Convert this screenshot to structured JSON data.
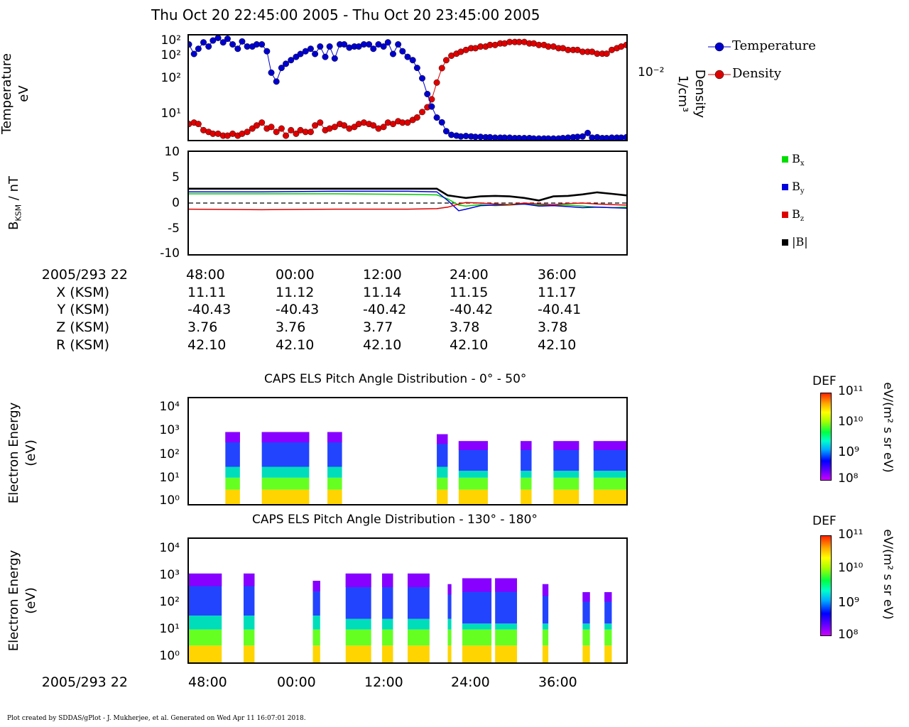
{
  "page": {
    "title": "Thu Oct 20 22:45:00 2005 - Thu Oct 20 23:45:00 2005",
    "footer": "Plot created by SDDAS/gPlot - J. Mukherjee, et al.  Generated on Wed Apr 11 16:07:01 2018."
  },
  "panel1": {
    "ylabel_line1": "Temperature",
    "ylabel_line2": "eV",
    "right_label_line1": "Density",
    "right_label_line2": "1/cm³",
    "right_tick": "10⁻²",
    "left_ticks": [
      "10²",
      "10²",
      "10²",
      "10¹"
    ],
    "legend": [
      {
        "label": "Temperature",
        "color": "#0000cc"
      },
      {
        "label": "Density",
        "color": "#dd0000"
      }
    ]
  },
  "panel2": {
    "ylabel": "B",
    "ylabel_sub": "KSM",
    "ylabel_unit": " / nT",
    "ticks": [
      "10",
      "5",
      "0",
      "-5",
      "-10"
    ],
    "legend": [
      {
        "label": "B",
        "sub": "x",
        "color": "#00dd00"
      },
      {
        "label": "B",
        "sub": "y",
        "color": "#0000dd"
      },
      {
        "label": "B",
        "sub": "z",
        "color": "#dd0000"
      },
      {
        "label": "|B|",
        "sub": "",
        "color": "#000000"
      }
    ]
  },
  "ephemeris": {
    "time_label": "2005/293 22",
    "times": [
      "48:00",
      "00:00",
      "12:00",
      "24:00",
      "36:00"
    ],
    "rows": [
      {
        "label": "X (KSM)",
        "values": [
          "11.11",
          "11.12",
          "11.14",
          "11.15",
          "11.17"
        ]
      },
      {
        "label": "Y (KSM)",
        "values": [
          "-40.43",
          "-40.43",
          "-40.42",
          "-40.42",
          "-40.41"
        ]
      },
      {
        "label": "Z (KSM)",
        "values": [
          "3.76",
          "3.76",
          "3.77",
          "3.78",
          "3.78"
        ]
      },
      {
        "label": "R (KSM)",
        "values": [
          "42.10",
          "42.10",
          "42.10",
          "42.10",
          "42.10"
        ]
      }
    ]
  },
  "panel3": {
    "title": "CAPS ELS Pitch Angle Distribution - 0° - 50°",
    "ylabel_line1": "Electron Energy",
    "ylabel_line2": "(eV)",
    "ticks": [
      "10⁴",
      "10³",
      "10²",
      "10¹",
      "10⁰"
    ],
    "colorbar_title": "DEF",
    "colorbar_ticks": [
      "10¹¹",
      "10¹⁰",
      "10⁹",
      "10⁸"
    ],
    "colorbar_unit": "eV/(m² s sr eV)"
  },
  "panel4": {
    "title": "CAPS ELS Pitch Angle Distribution - 130° - 180°",
    "ylabel_line1": "Electron Energy",
    "ylabel_line2": "(eV)",
    "ticks": [
      "10⁴",
      "10³",
      "10²",
      "10¹",
      "10⁰"
    ],
    "colorbar_title": "DEF",
    "colorbar_ticks": [
      "10¹¹",
      "10¹⁰",
      "10⁹",
      "10⁸"
    ],
    "colorbar_unit": "eV/(m² s sr eV)"
  },
  "bottom_axis": {
    "time_label": "2005/293 22",
    "ticks": [
      "48:00",
      "00:00",
      "12:00",
      "24:00",
      "36:00"
    ]
  },
  "chart_data": [
    {
      "type": "line",
      "title": "",
      "x_unit": "minutes after 22:45",
      "xlim": [
        0,
        60
      ],
      "ylabel": "Temperature eV",
      "y2label": "Density 1/cm³",
      "series": [
        {
          "name": "Temperature",
          "color": "#0000cc",
          "x": [
            0,
            0.7,
            1.3,
            2,
            2.7,
            3.3,
            4,
            4.7,
            5.3,
            6,
            6.7,
            7.3,
            8,
            8.7,
            9.3,
            10,
            10.7,
            11.3,
            12,
            12.7,
            13.3,
            14,
            14.7,
            15.3,
            16,
            16.7,
            17.3,
            18,
            18.7,
            19.3,
            20,
            20.7,
            21.3,
            22,
            22.7,
            23.3,
            24,
            24.7,
            25.3,
            26,
            26.7,
            27.3,
            28,
            28.7,
            29.3,
            30,
            30.7,
            31.3,
            32,
            32.7,
            33.3,
            34,
            34.7,
            35.3,
            36,
            36.7,
            37.3,
            38,
            38.7,
            39.3,
            40,
            40.7,
            41.3,
            42,
            42.7,
            43.3,
            44,
            44.7,
            45.3,
            46,
            46.7,
            47.3,
            48,
            48.7,
            49.3,
            50,
            50.7,
            51.3,
            52,
            52.7,
            53.3,
            54,
            54.7,
            55.3,
            56,
            56.7,
            57.3,
            58,
            58.7,
            59.3,
            60
          ],
          "y": [
            150,
            110,
            130,
            160,
            140,
            170,
            185,
            160,
            180,
            150,
            130,
            165,
            140,
            140,
            150,
            150,
            120,
            60,
            45,
            70,
            80,
            90,
            100,
            110,
            120,
            130,
            110,
            140,
            100,
            140,
            95,
            150,
            150,
            135,
            140,
            140,
            150,
            150,
            130,
            150,
            140,
            160,
            110,
            150,
            120,
            100,
            90,
            70,
            50,
            30,
            20,
            14,
            12,
            9,
            8,
            7.8,
            7.6,
            7.7,
            7.6,
            7.5,
            7.5,
            7.4,
            7.4,
            7.3,
            7.3,
            7.3,
            7.3,
            7.2,
            7.2,
            7.2,
            7.2,
            7.1,
            7.1,
            7.1,
            7.1,
            7.1,
            7.1,
            7.2,
            7.3,
            7.4,
            7.5,
            7.6,
            8.5,
            7.3,
            7.4,
            7.2,
            7.2,
            7.3,
            7.3,
            7.3,
            7.4
          ]
        },
        {
          "name": "Density",
          "color": "#dd0000",
          "x": [
            0,
            0.7,
            1.3,
            2,
            2.7,
            3.3,
            4,
            4.7,
            5.3,
            6,
            6.7,
            7.3,
            8,
            8.7,
            9.3,
            10,
            10.7,
            11.3,
            12,
            12.7,
            13.3,
            14,
            14.7,
            15.3,
            16,
            16.7,
            17.3,
            18,
            18.7,
            19.3,
            20,
            20.7,
            21.3,
            22,
            22.7,
            23.3,
            24,
            24.7,
            25.3,
            26,
            26.7,
            27.3,
            28,
            28.7,
            29.3,
            30,
            30.7,
            31.3,
            32,
            32.7,
            33.3,
            34,
            34.7,
            35.3,
            36,
            36.7,
            37.3,
            38,
            38.7,
            39.3,
            40,
            40.7,
            41.3,
            42,
            42.7,
            43.3,
            44,
            44.7,
            45.3,
            46,
            46.7,
            47.3,
            48,
            48.7,
            49.3,
            50,
            50.7,
            51.3,
            52,
            52.7,
            53.3,
            54,
            54.7,
            55.3,
            56,
            56.7,
            57.3,
            58,
            58.7,
            59.3,
            60
          ],
          "y": [
            0.0025,
            0.0026,
            0.0025,
            0.0021,
            0.002,
            0.0019,
            0.0019,
            0.0018,
            0.0018,
            0.0019,
            0.0018,
            0.0019,
            0.002,
            0.0022,
            0.0024,
            0.0026,
            0.0022,
            0.0023,
            0.002,
            0.0022,
            0.0018,
            0.0021,
            0.0019,
            0.0021,
            0.002,
            0.002,
            0.0024,
            0.0026,
            0.0021,
            0.0022,
            0.0023,
            0.0025,
            0.0024,
            0.0022,
            0.0023,
            0.0025,
            0.0026,
            0.0025,
            0.0024,
            0.0022,
            0.0023,
            0.0026,
            0.0025,
            0.0027,
            0.0026,
            0.0026,
            0.0028,
            0.003,
            0.0035,
            0.004,
            0.005,
            0.008,
            0.012,
            0.015,
            0.017,
            0.018,
            0.019,
            0.02,
            0.021,
            0.021,
            0.022,
            0.022,
            0.023,
            0.023,
            0.024,
            0.024,
            0.025,
            0.025,
            0.025,
            0.025,
            0.024,
            0.024,
            0.023,
            0.023,
            0.022,
            0.022,
            0.021,
            0.021,
            0.02,
            0.02,
            0.02,
            0.019,
            0.019,
            0.019,
            0.018,
            0.018,
            0.018,
            0.02,
            0.021,
            0.022,
            0.023
          ]
        }
      ]
    },
    {
      "type": "line",
      "title": "",
      "x_unit": "minutes after 22:45",
      "xlim": [
        0,
        60
      ],
      "ylim": [
        -10,
        10
      ],
      "ylabel": "B_KSM / nT",
      "series": [
        {
          "name": "Bx",
          "color": "#00cc00",
          "x": [
            0,
            10,
            20,
            30,
            34,
            35.5,
            37,
            38,
            40,
            42,
            44,
            46,
            48,
            50,
            52,
            54,
            56,
            58,
            60
          ],
          "y": [
            1.8,
            1.8,
            1.8,
            1.7,
            1.6,
            0.8,
            -0.4,
            -0.6,
            -0.3,
            -0.5,
            -0.4,
            -0.2,
            -0.4,
            -0.5,
            -0.4,
            -0.6,
            -0.8,
            -0.9,
            -0.8
          ]
        },
        {
          "name": "By",
          "color": "#0000dd",
          "x": [
            0,
            10,
            20,
            30,
            34,
            35.5,
            37,
            38,
            40,
            42,
            44,
            46,
            48,
            50,
            52,
            54,
            56,
            58,
            60
          ],
          "y": [
            2.2,
            2.2,
            2.3,
            2.3,
            2.2,
            0.5,
            -1.5,
            -1.2,
            -0.5,
            -0.4,
            -0.3,
            -0.2,
            -0.6,
            -0.5,
            -0.7,
            -0.9,
            -0.8,
            -0.9,
            -1.0
          ]
        },
        {
          "name": "Bz",
          "color": "#dd0000",
          "x": [
            0,
            10,
            20,
            30,
            34,
            35.5,
            37,
            38,
            40,
            42,
            44,
            46,
            48,
            50,
            52,
            54,
            56,
            58,
            60
          ],
          "y": [
            -1.2,
            -1.3,
            -1.2,
            -1.2,
            -1.1,
            -0.8,
            -0.2,
            0.1,
            0.0,
            -0.2,
            -0.3,
            0.0,
            -0.2,
            -0.3,
            -0.1,
            0.0,
            -0.2,
            -0.3,
            -0.4
          ]
        },
        {
          "name": "|B|",
          "color": "#000000",
          "x": [
            0,
            10,
            20,
            30,
            34,
            35.5,
            37,
            38,
            40,
            42,
            44,
            46,
            48,
            50,
            52,
            54,
            56,
            58,
            60
          ],
          "y": [
            2.8,
            2.8,
            2.8,
            2.8,
            2.8,
            1.5,
            1.2,
            1.0,
            1.3,
            1.4,
            1.3,
            1.0,
            0.5,
            1.3,
            1.4,
            1.7,
            2.1,
            1.8,
            1.5
          ]
        }
      ]
    },
    {
      "type": "heatmap",
      "title": "CAPS ELS Pitch Angle Distribution - 0° - 50°",
      "ylabel": "Electron Energy (eV)",
      "scale": "log",
      "x_unit": "minutes after 22:45",
      "xlim": [
        0,
        60
      ],
      "ylim": [
        0.7,
        30000
      ],
      "colorbar": {
        "label": "DEF",
        "unit": "eV/(m² s sr eV)",
        "range": [
          100000000.0,
          100000000000.0
        ]
      },
      "blocks": [
        {
          "x": [
            5,
            7
          ],
          "low_emax": 10,
          "high_range": [
            30,
            1000
          ]
        },
        {
          "x": [
            10,
            16.5
          ],
          "low_emax": 10,
          "high_range": [
            30,
            1000
          ]
        },
        {
          "x": [
            19,
            21
          ],
          "low_emax": 10,
          "high_range": [
            30,
            1000
          ]
        },
        {
          "x": [
            34,
            35.5
          ],
          "low_emax": 10,
          "high_range": [
            30,
            800
          ]
        },
        {
          "x": [
            37,
            41
          ],
          "low_emax": 10,
          "high_range": [
            20,
            400
          ]
        },
        {
          "x": [
            45.5,
            47
          ],
          "low_emax": 10,
          "high_range": [
            20,
            400
          ]
        },
        {
          "x": [
            50,
            53.5
          ],
          "low_emax": 10,
          "high_range": [
            20,
            400
          ]
        },
        {
          "x": [
            55.5,
            60
          ],
          "low_emax": 10,
          "high_range": [
            20,
            400
          ]
        }
      ]
    },
    {
      "type": "heatmap",
      "title": "CAPS ELS Pitch Angle Distribution - 130° - 180°",
      "ylabel": "Electron Energy (eV)",
      "scale": "log",
      "x_unit": "minutes after 22:45",
      "xlim": [
        0,
        60
      ],
      "ylim": [
        0.7,
        30000
      ],
      "colorbar": {
        "label": "DEF",
        "unit": "eV/(m² s sr eV)",
        "range": [
          100000000.0,
          100000000000.0
        ]
      },
      "blocks": [
        {
          "x": [
            0,
            4.5
          ],
          "low_emax": 12,
          "high_range": [
            40,
            1500
          ]
        },
        {
          "x": [
            7.5,
            9
          ],
          "low_emax": 12,
          "high_range": [
            40,
            1500
          ]
        },
        {
          "x": [
            17,
            18
          ],
          "low_emax": 12,
          "high_range": [
            40,
            800
          ]
        },
        {
          "x": [
            21.5,
            25
          ],
          "low_emax": 12,
          "high_range": [
            30,
            1500
          ]
        },
        {
          "x": [
            26.5,
            28
          ],
          "low_emax": 12,
          "high_range": [
            30,
            1500
          ]
        },
        {
          "x": [
            30,
            33
          ],
          "low_emax": 12,
          "high_range": [
            30,
            1500
          ]
        },
        {
          "x": [
            35.5,
            36
          ],
          "low_emax": 12,
          "high_range": [
            30,
            600
          ]
        },
        {
          "x": [
            37.5,
            41.5
          ],
          "low_emax": 12,
          "high_range": [
            20,
            1000
          ]
        },
        {
          "x": [
            42,
            45
          ],
          "low_emax": 12,
          "high_range": [
            20,
            1000
          ]
        },
        {
          "x": [
            48.5,
            49.3
          ],
          "low_emax": 12,
          "high_range": [
            20,
            600
          ]
        },
        {
          "x": [
            54,
            55
          ],
          "low_emax": 12,
          "high_range": [
            20,
            300
          ]
        },
        {
          "x": [
            57,
            58
          ],
          "low_emax": 12,
          "high_range": [
            20,
            300
          ]
        }
      ]
    }
  ]
}
